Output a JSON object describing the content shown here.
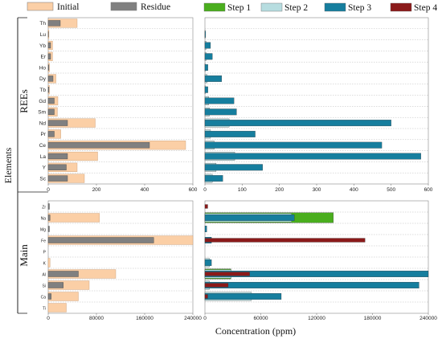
{
  "chart_data": {
    "type": "bar",
    "orientation": "horizontal",
    "xlabel": "Concentration (ppm)",
    "ylabel": "Elements",
    "legend": {
      "left": [
        {
          "name": "Initial",
          "color": "#fbcfa6"
        },
        {
          "name": "Residue",
          "color": "#808080"
        }
      ],
      "right": [
        {
          "name": "Step 1",
          "color": "#4aae1e"
        },
        {
          "name": "Step 2",
          "color": "#b7dde0"
        },
        {
          "name": "Step 3",
          "color": "#167e9e"
        },
        {
          "name": "Step 4",
          "color": "#8b1a1a"
        }
      ]
    },
    "groups": [
      {
        "name": "REEs",
        "categories": [
          "Th",
          "Lu",
          "Yb",
          "Er",
          "Ho",
          "Dy",
          "Tb",
          "Gd",
          "Sm",
          "Nd",
          "Pr",
          "Ce",
          "La",
          "Y",
          "Sc"
        ],
        "left_panel": {
          "xlim": [
            0,
            600
          ],
          "ticks": [
            "0",
            "200",
            "400",
            "600"
          ],
          "tick_values": [
            0,
            200,
            400,
            600
          ],
          "series": [
            {
              "name": "Initial",
              "values": [
                120,
                3,
                18,
                18,
                5,
                32,
                5,
                40,
                38,
                195,
                52,
                570,
                205,
                120,
                150
              ]
            },
            {
              "name": "Residue",
              "values": [
                50,
                1,
                10,
                10,
                3,
                20,
                3,
                25,
                25,
                80,
                25,
                420,
                80,
                75,
                80
              ]
            }
          ]
        },
        "right_panel": {
          "xlim": [
            0,
            600
          ],
          "ticks": [
            "0",
            "100",
            "200",
            "300",
            "400",
            "500",
            "600"
          ],
          "tick_values": [
            0,
            100,
            200,
            300,
            400,
            500,
            600
          ],
          "series": [
            {
              "name": "Step 1",
              "values": [
                0,
                0,
                0,
                0,
                0,
                0,
                0,
                0,
                0,
                0,
                0,
                0,
                0,
                0,
                0
              ]
            },
            {
              "name": "Step 2",
              "values": [
                0,
                1,
                3,
                3,
                1,
                6,
                1,
                10,
                12,
                65,
                15,
                25,
                80,
                30,
                20
              ]
            },
            {
              "name": "Step 3",
              "values": [
                0,
                2,
                15,
                20,
                8,
                45,
                8,
                78,
                85,
                500,
                135,
                475,
                580,
                155,
                48
              ]
            },
            {
              "name": "Step 4",
              "values": [
                0,
                0,
                0,
                0,
                0,
                0,
                0,
                0,
                0,
                0,
                0,
                0,
                0,
                0,
                0
              ]
            }
          ]
        }
      },
      {
        "name": "Main",
        "categories": [
          "Zr",
          "Na",
          "Mg",
          "Fe",
          "P",
          "K",
          "Al",
          "Si",
          "Ca",
          "Ti"
        ],
        "left_panel": {
          "xlim": [
            0,
            240000
          ],
          "ticks": [
            "0",
            "80000",
            "160000",
            "240000"
          ],
          "tick_values": [
            0,
            80000,
            160000,
            240000
          ],
          "series": [
            {
              "name": "Initial",
              "values": [
                0,
                85000,
                0,
                240000,
                0,
                3000,
                112000,
                68000,
                50000,
                30000
              ]
            },
            {
              "name": "Residue",
              "values": [
                2000,
                3000,
                2000,
                175000,
                0,
                0,
                50000,
                25000,
                5000,
                0
              ]
            }
          ]
        },
        "right_panel": {
          "xlim": [
            0,
            240000
          ],
          "ticks": [
            "0",
            "60000",
            "120000",
            "180000",
            "240000"
          ],
          "tick_values": [
            0,
            60000,
            120000,
            180000,
            240000
          ],
          "series": [
            {
              "name": "Step 1",
              "values": [
                0,
                138000,
                0,
                0,
                0,
                0,
                28000,
                0,
                0,
                0
              ]
            },
            {
              "name": "Step 2",
              "values": [
                0,
                93000,
                0,
                0,
                0,
                5000,
                28000,
                5000,
                50000,
                0
              ]
            },
            {
              "name": "Step 3",
              "values": [
                0,
                96000,
                2000,
                7000,
                0,
                7000,
                240000,
                230000,
                82000,
                0
              ]
            },
            {
              "name": "Step 4",
              "values": [
                3000,
                0,
                0,
                172000,
                0,
                0,
                48000,
                25000,
                3000,
                0
              ]
            }
          ]
        }
      }
    ]
  }
}
